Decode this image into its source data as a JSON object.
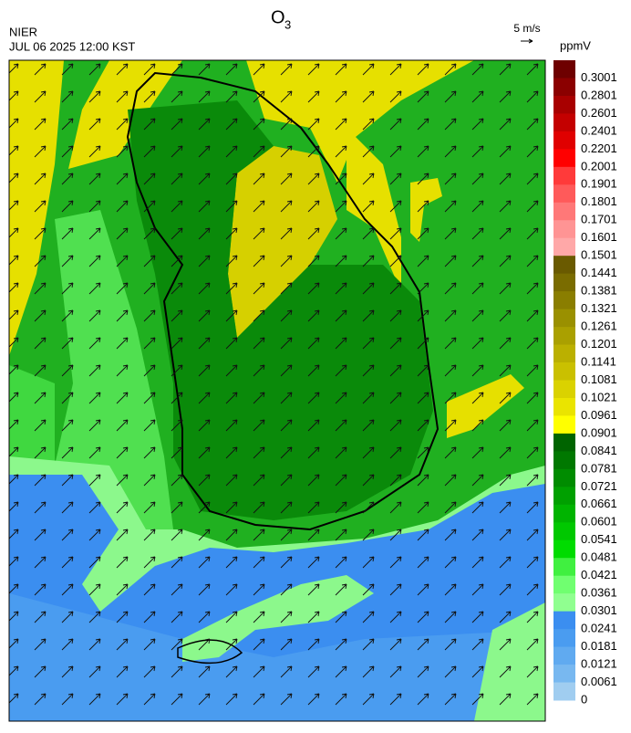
{
  "header": {
    "title": {
      "main": "O",
      "subscript": "3"
    },
    "agency": "NIER",
    "datetime": "JUL 06 2025 12:00 KST",
    "wind_scale": "5 m/s"
  },
  "colorbar": {
    "unit": "ppmV",
    "levels": [
      {
        "label": "0.3001",
        "color": "#6e0000"
      },
      {
        "label": "0.2801",
        "color": "#8b0000"
      },
      {
        "label": "0.2601",
        "color": "#a80000"
      },
      {
        "label": "0.2401",
        "color": "#c40000"
      },
      {
        "label": "0.2201",
        "color": "#e00000"
      },
      {
        "label": "0.2001",
        "color": "#ff0000"
      },
      {
        "label": "0.1901",
        "color": "#ff3a3a"
      },
      {
        "label": "0.1801",
        "color": "#ff5a5a"
      },
      {
        "label": "0.1701",
        "color": "#ff7878"
      },
      {
        "label": "0.1601",
        "color": "#ff9494"
      },
      {
        "label": "0.1501",
        "color": "#ffa8a8"
      },
      {
        "label": "0.1441",
        "color": "#6a5a00"
      },
      {
        "label": "0.1381",
        "color": "#7a6c00"
      },
      {
        "label": "0.1321",
        "color": "#8a7e00"
      },
      {
        "label": "0.1261",
        "color": "#9a9000"
      },
      {
        "label": "0.1201",
        "color": "#aaa000"
      },
      {
        "label": "0.1141",
        "color": "#bbb000"
      },
      {
        "label": "0.1081",
        "color": "#cac000"
      },
      {
        "label": "0.1021",
        "color": "#dad200"
      },
      {
        "label": "0.0961",
        "color": "#eae400"
      },
      {
        "label": "0.0901",
        "color": "#ffff00"
      },
      {
        "label": "0.0841",
        "color": "#006400"
      },
      {
        "label": "0.0781",
        "color": "#007800"
      },
      {
        "label": "0.0721",
        "color": "#008c00"
      },
      {
        "label": "0.0661",
        "color": "#00a000"
      },
      {
        "label": "0.0601",
        "color": "#00b400"
      },
      {
        "label": "0.0541",
        "color": "#00c800"
      },
      {
        "label": "0.0481",
        "color": "#00dc00"
      },
      {
        "label": "0.0421",
        "color": "#40f040"
      },
      {
        "label": "0.0361",
        "color": "#70ff70"
      },
      {
        "label": "0.0301",
        "color": "#90ff90"
      },
      {
        "label": "0.0241",
        "color": "#3b8ef0"
      },
      {
        "label": "0.0181",
        "color": "#4a9cf0"
      },
      {
        "label": "0.0121",
        "color": "#60aaf0"
      },
      {
        "label": "0.0061",
        "color": "#78b8f0"
      },
      {
        "label": "0",
        "color": "#a0cdf0"
      }
    ]
  }
}
